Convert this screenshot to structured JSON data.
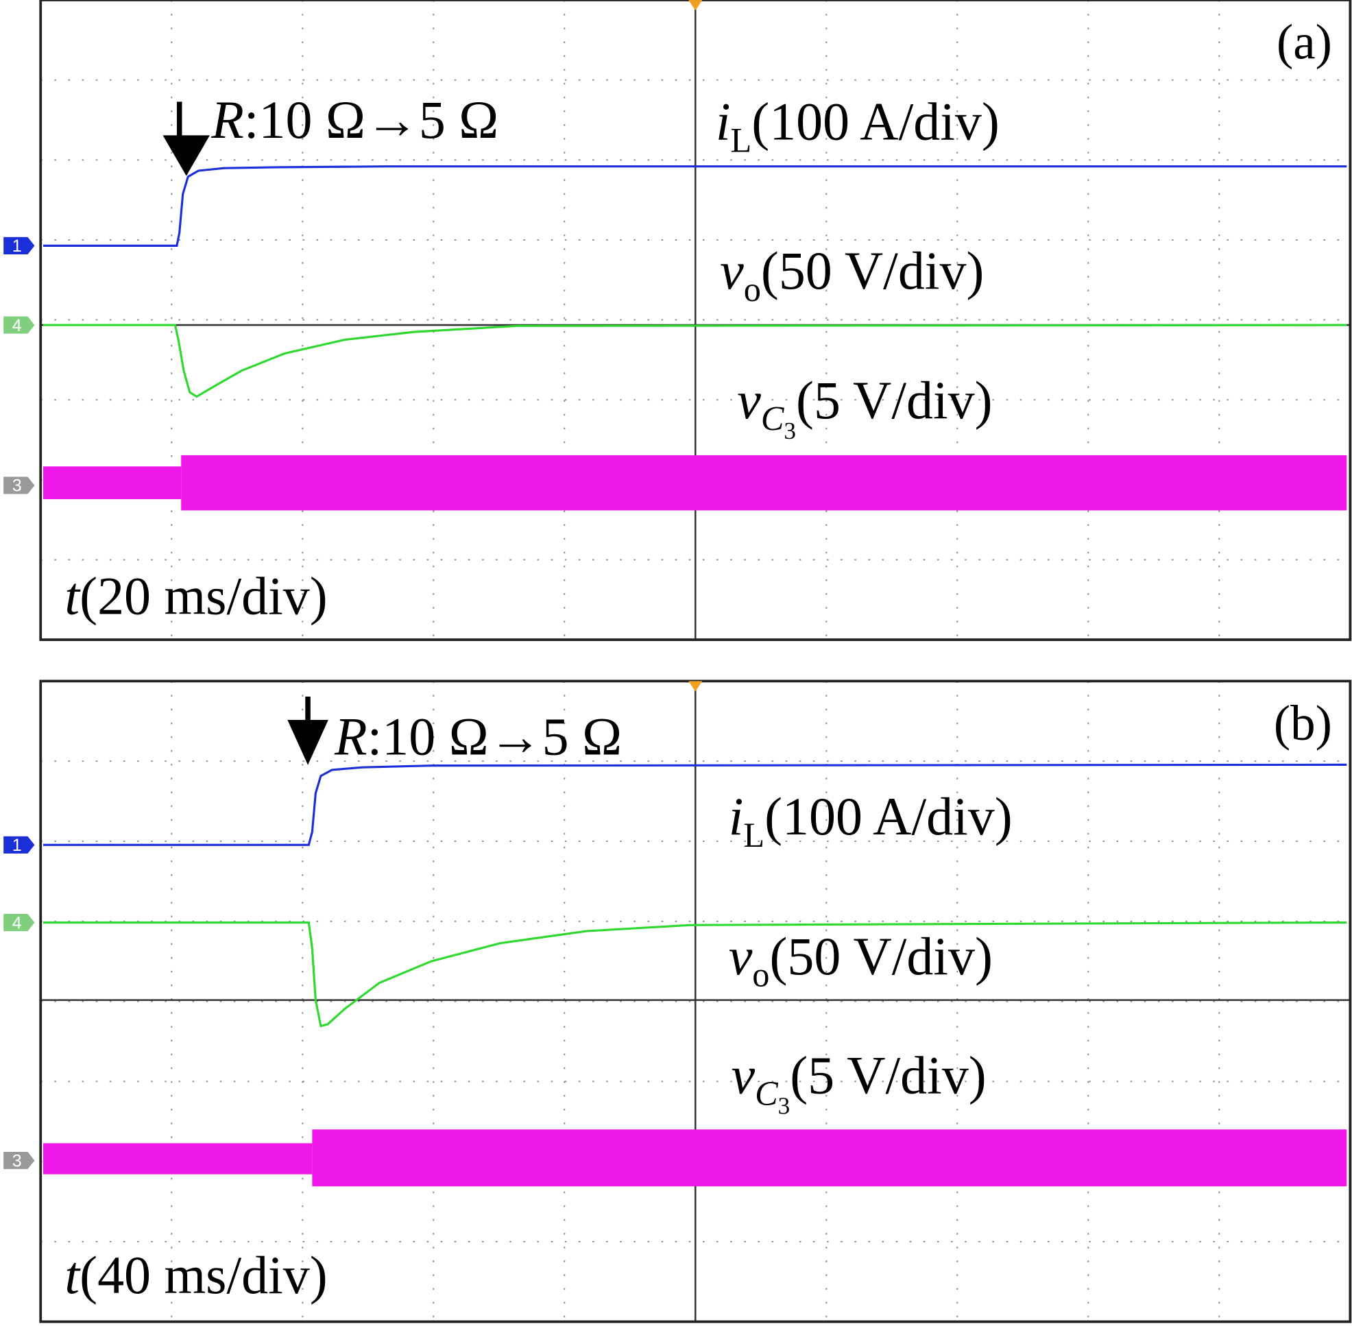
{
  "panels": [
    {
      "tag": "(a)",
      "event": {
        "symbol": "R",
        "text": ":10 Ω→5 Ω"
      },
      "traces": [
        {
          "symbol": "i",
          "sub": "L",
          "scale": "(100 A/div)"
        },
        {
          "symbol": "v",
          "sub": "o",
          "scale": "(50 V/div)"
        },
        {
          "symbol": "v",
          "sub": "C",
          "subsub": "3",
          "scale": "(5 V/div)"
        }
      ],
      "time": {
        "symbol": "t",
        "scale": "(20 ms/div)"
      },
      "channels": [
        "1",
        "4",
        "3"
      ]
    },
    {
      "tag": "(b)",
      "event": {
        "symbol": "R",
        "text": ":10 Ω→5 Ω"
      },
      "traces": [
        {
          "symbol": "i",
          "sub": "L",
          "scale": "(100 A/div)"
        },
        {
          "symbol": "v",
          "sub": "o",
          "scale": "(50 V/div)"
        },
        {
          "symbol": "v",
          "sub": "C",
          "subsub": "3",
          "scale": "(5 V/div)"
        }
      ],
      "time": {
        "symbol": "t",
        "scale": "(40 ms/div)"
      },
      "channels": [
        "1",
        "4",
        "3"
      ]
    }
  ]
}
